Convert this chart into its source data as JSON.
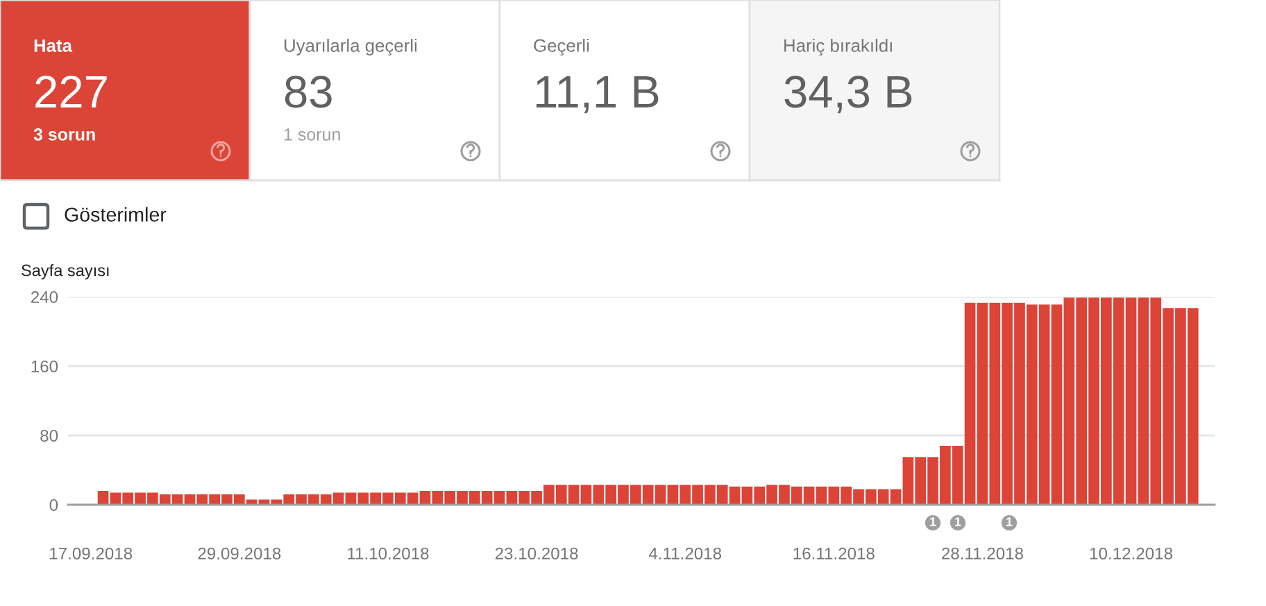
{
  "chart_data": [
    {
      "type": "other",
      "title": "Hata",
      "annotations": [
        "227",
        "3 sorun"
      ]
    },
    {
      "type": "other",
      "title": "Uyarılarla geçerli",
      "annotations": [
        "83",
        "1 sorun"
      ]
    },
    {
      "type": "other",
      "title": "Geçerli",
      "annotations": [
        "11,1 B"
      ]
    },
    {
      "type": "other",
      "title": "Hariç bırakıldı",
      "annotations": [
        "34,3 B"
      ]
    },
    {
      "type": "bar",
      "ylabel": "Sayfa sayısı",
      "x": [
        "2018-09-18",
        "2018-09-19",
        "2018-09-20",
        "2018-09-21",
        "2018-09-22",
        "2018-09-23",
        "2018-09-24",
        "2018-09-25",
        "2018-09-26",
        "2018-09-27",
        "2018-09-28",
        "2018-09-29",
        "2018-09-30",
        "2018-10-01",
        "2018-10-02",
        "2018-10-03",
        "2018-10-04",
        "2018-10-05",
        "2018-10-06",
        "2018-10-07",
        "2018-10-08",
        "2018-10-09",
        "2018-10-10",
        "2018-10-11",
        "2018-10-12",
        "2018-10-13",
        "2018-10-14",
        "2018-10-15",
        "2018-10-16",
        "2018-10-17",
        "2018-10-18",
        "2018-10-19",
        "2018-10-20",
        "2018-10-21",
        "2018-10-22",
        "2018-10-23",
        "2018-10-24",
        "2018-10-25",
        "2018-10-26",
        "2018-10-27",
        "2018-10-28",
        "2018-10-29",
        "2018-10-30",
        "2018-10-31",
        "2018-11-01",
        "2018-11-02",
        "2018-11-03",
        "2018-11-04",
        "2018-11-05",
        "2018-11-06",
        "2018-11-07",
        "2018-11-08",
        "2018-11-09",
        "2018-11-10",
        "2018-11-11",
        "2018-11-12",
        "2018-11-13",
        "2018-11-14",
        "2018-11-15",
        "2018-11-16",
        "2018-11-17",
        "2018-11-18",
        "2018-11-19",
        "2018-11-20",
        "2018-11-21",
        "2018-11-22",
        "2018-11-23",
        "2018-11-24",
        "2018-11-25",
        "2018-11-26",
        "2018-11-27",
        "2018-11-28",
        "2018-11-29",
        "2018-11-30",
        "2018-12-01",
        "2018-12-02",
        "2018-12-03",
        "2018-12-04",
        "2018-12-05",
        "2018-12-06",
        "2018-12-07",
        "2018-12-08",
        "2018-12-09",
        "2018-12-10",
        "2018-12-11",
        "2018-12-12",
        "2018-12-13",
        "2018-12-14",
        "2018-12-15"
      ],
      "values": [
        16,
        14,
        14,
        14,
        14,
        12,
        12,
        12,
        12,
        12,
        12,
        12,
        6,
        6,
        6,
        12,
        12,
        12,
        12,
        14,
        14,
        14,
        14,
        14,
        14,
        14,
        16,
        16,
        16,
        16,
        16,
        16,
        16,
        16,
        16,
        16,
        23,
        23,
        23,
        23,
        23,
        23,
        23,
        23,
        23,
        23,
        23,
        23,
        23,
        23,
        23,
        21,
        21,
        21,
        23,
        23,
        21,
        21,
        21,
        21,
        21,
        18,
        18,
        18,
        18,
        55,
        55,
        55,
        68,
        68,
        233,
        233,
        233,
        233,
        233,
        231,
        231,
        231,
        239,
        239,
        239,
        239,
        239,
        239,
        239,
        239,
        227,
        227,
        227
      ],
      "color": "#db4437",
      "xlim": [
        "2018-09-15T04:00",
        "2018-12-16T18:00"
      ],
      "xticks": [
        {
          "value": "2018-09-17",
          "label": "17.09.2018"
        },
        {
          "value": "2018-09-29",
          "label": "29.09.2018"
        },
        {
          "value": "2018-10-11",
          "label": "11.10.2018"
        },
        {
          "value": "2018-10-23",
          "label": "23.10.2018"
        },
        {
          "value": "2018-11-04",
          "label": "4.11.2018"
        },
        {
          "value": "2018-11-16",
          "label": "16.11.2018"
        },
        {
          "value": "2018-11-28",
          "label": "28.11.2018"
        },
        {
          "value": "2018-12-10",
          "label": "10.12.2018"
        }
      ],
      "ylim": [
        0,
        240
      ],
      "yticks": [
        0,
        80,
        160,
        240
      ],
      "grid": "y",
      "annotations": [
        "Gösterimler",
        "1",
        "1",
        "1"
      ]
    }
  ]
}
